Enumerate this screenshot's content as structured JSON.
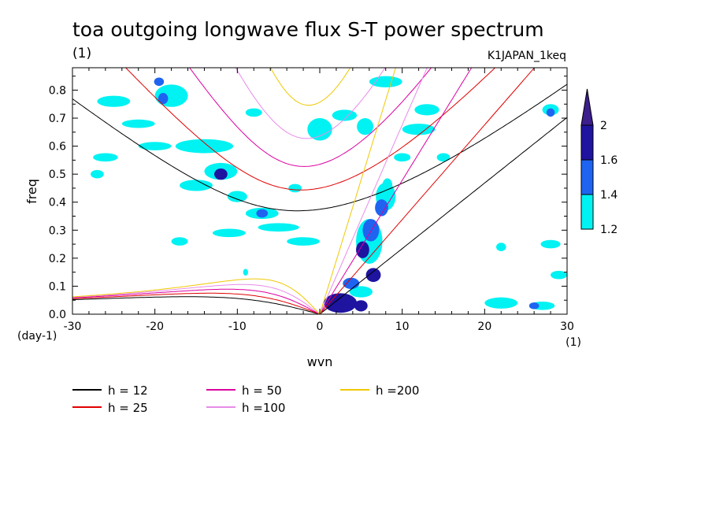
{
  "chart_data": {
    "type": "heatmap",
    "title": "toa outgoing longwave flux S-T power spectrum",
    "subtitle_left": "(1)",
    "subtitle_right": "K1JAPAN_1keq",
    "xlabel": "wvn",
    "ylabel": "freq",
    "x_unit": "(1)",
    "y_unit": "(day-1)",
    "xlim": [
      -30,
      30
    ],
    "ylim": [
      0,
      0.88
    ],
    "x_ticks": [
      -30,
      -20,
      -10,
      0,
      10,
      20,
      30
    ],
    "y_ticks": [
      0.0,
      0.1,
      0.2,
      0.3,
      0.4,
      0.5,
      0.6,
      0.7,
      0.8
    ],
    "x_tick_labels": [
      "-30",
      "-20",
      "-10",
      "0",
      "10",
      "20",
      "30"
    ],
    "y_tick_labels": [
      "0.0",
      "0.1",
      "0.2",
      "0.3",
      "0.4",
      "0.5",
      "0.6",
      "0.7",
      "0.8"
    ],
    "colorbar": {
      "levels": [
        1.2,
        1.4,
        1.6,
        2
      ],
      "labels": [
        "1.2",
        "1.4",
        "1.6",
        "2"
      ],
      "colors": [
        "#00f2f2",
        "#1e64f0",
        "#1e14a0",
        "#3c1e8c"
      ]
    },
    "series": [
      {
        "name": "h = 12",
        "h": 12,
        "color": "#000000"
      },
      {
        "name": "h = 25",
        "h": 25,
        "color": "#e10000"
      },
      {
        "name": "h = 50",
        "h": 50,
        "color": "#dc00a0"
      },
      {
        "name": "h =100",
        "h": 100,
        "color": "#e88ce8"
      },
      {
        "name": "h =200",
        "h": 200,
        "color": "#f0c800"
      }
    ],
    "blobs": [
      {
        "x": 2.5,
        "y": 0.04,
        "rx": 2.0,
        "ry": 0.035,
        "level": 3
      },
      {
        "x": 5.0,
        "y": 0.03,
        "rx": 0.8,
        "ry": 0.02,
        "level": 3
      },
      {
        "x": 3.8,
        "y": 0.11,
        "rx": 1.0,
        "ry": 0.02,
        "level": 2
      },
      {
        "x": 6.5,
        "y": 0.14,
        "rx": 0.9,
        "ry": 0.025,
        "level": 3
      },
      {
        "x": 5.2,
        "y": 0.23,
        "rx": 0.8,
        "ry": 0.03,
        "level": 3
      },
      {
        "x": 6.2,
        "y": 0.3,
        "rx": 1.0,
        "ry": 0.04,
        "level": 2
      },
      {
        "x": 7.5,
        "y": 0.38,
        "rx": 0.8,
        "ry": 0.03,
        "level": 2
      },
      {
        "x": 8.2,
        "y": 0.46,
        "rx": 0.6,
        "ry": 0.025,
        "level": 1
      },
      {
        "x": -12.0,
        "y": 0.5,
        "rx": 0.8,
        "ry": 0.02,
        "level": 3
      },
      {
        "x": -19.5,
        "y": 0.83,
        "rx": 0.6,
        "ry": 0.015,
        "level": 2
      },
      {
        "x": -19.0,
        "y": 0.77,
        "rx": 0.6,
        "ry": 0.02,
        "level": 2
      },
      {
        "x": -7.0,
        "y": 0.36,
        "rx": 0.7,
        "ry": 0.015,
        "level": 2
      },
      {
        "x": 28.0,
        "y": 0.72,
        "rx": 0.5,
        "ry": 0.015,
        "level": 2
      },
      {
        "x": 26.0,
        "y": 0.03,
        "rx": 0.6,
        "ry": 0.012,
        "level": 2
      },
      {
        "x": 5.0,
        "y": 0.08,
        "rx": 1.4,
        "ry": 0.02,
        "level": 1
      },
      {
        "x": 6.0,
        "y": 0.26,
        "rx": 1.6,
        "ry": 0.08,
        "level": 1
      },
      {
        "x": 8.0,
        "y": 0.42,
        "rx": 1.2,
        "ry": 0.05,
        "level": 1
      },
      {
        "x": -18.0,
        "y": 0.78,
        "rx": 2.0,
        "ry": 0.04,
        "level": 1
      },
      {
        "x": -25.0,
        "y": 0.76,
        "rx": 2.0,
        "ry": 0.02,
        "level": 1
      },
      {
        "x": -14.0,
        "y": 0.6,
        "rx": 3.5,
        "ry": 0.025,
        "level": 1
      },
      {
        "x": -20.0,
        "y": 0.6,
        "rx": 2.0,
        "ry": 0.015,
        "level": 1
      },
      {
        "x": -22.0,
        "y": 0.68,
        "rx": 2.0,
        "ry": 0.015,
        "level": 1
      },
      {
        "x": -12.0,
        "y": 0.51,
        "rx": 2.0,
        "ry": 0.03,
        "level": 1
      },
      {
        "x": -15.0,
        "y": 0.46,
        "rx": 2.0,
        "ry": 0.02,
        "level": 1
      },
      {
        "x": -10.0,
        "y": 0.42,
        "rx": 1.2,
        "ry": 0.02,
        "level": 1
      },
      {
        "x": -7.0,
        "y": 0.36,
        "rx": 2.0,
        "ry": 0.02,
        "level": 1
      },
      {
        "x": -5.0,
        "y": 0.31,
        "rx": 2.5,
        "ry": 0.015,
        "level": 1
      },
      {
        "x": -11.0,
        "y": 0.29,
        "rx": 2.0,
        "ry": 0.015,
        "level": 1
      },
      {
        "x": -2.0,
        "y": 0.26,
        "rx": 2.0,
        "ry": 0.015,
        "level": 1
      },
      {
        "x": -17.0,
        "y": 0.26,
        "rx": 1.0,
        "ry": 0.015,
        "level": 1
      },
      {
        "x": 0.0,
        "y": 0.66,
        "rx": 1.5,
        "ry": 0.04,
        "level": 1
      },
      {
        "x": 3.0,
        "y": 0.71,
        "rx": 1.5,
        "ry": 0.02,
        "level": 1
      },
      {
        "x": 5.5,
        "y": 0.67,
        "rx": 1.0,
        "ry": 0.03,
        "level": 1
      },
      {
        "x": 12.0,
        "y": 0.66,
        "rx": 2.0,
        "ry": 0.02,
        "level": 1
      },
      {
        "x": 13.0,
        "y": 0.73,
        "rx": 1.5,
        "ry": 0.02,
        "level": 1
      },
      {
        "x": 8.0,
        "y": 0.83,
        "rx": 2.0,
        "ry": 0.02,
        "level": 1
      },
      {
        "x": 10.0,
        "y": 0.56,
        "rx": 1.0,
        "ry": 0.015,
        "level": 1
      },
      {
        "x": -26.0,
        "y": 0.56,
        "rx": 1.5,
        "ry": 0.015,
        "level": 1
      },
      {
        "x": -8.0,
        "y": 0.72,
        "rx": 1.0,
        "ry": 0.015,
        "level": 1
      },
      {
        "x": 28.0,
        "y": 0.73,
        "rx": 1.0,
        "ry": 0.02,
        "level": 1
      },
      {
        "x": 22.0,
        "y": 0.04,
        "rx": 2.0,
        "ry": 0.02,
        "level": 1
      },
      {
        "x": 27.0,
        "y": 0.03,
        "rx": 1.5,
        "ry": 0.015,
        "level": 1
      },
      {
        "x": 28.0,
        "y": 0.25,
        "rx": 1.2,
        "ry": 0.015,
        "level": 1
      },
      {
        "x": 29.0,
        "y": 0.14,
        "rx": 1.0,
        "ry": 0.015,
        "level": 1
      },
      {
        "x": 22.0,
        "y": 0.24,
        "rx": 0.6,
        "ry": 0.015,
        "level": 1
      },
      {
        "x": 15.0,
        "y": 0.56,
        "rx": 0.8,
        "ry": 0.015,
        "level": 1
      },
      {
        "x": -9.0,
        "y": 0.15,
        "rx": 0.3,
        "ry": 0.012,
        "level": 1
      },
      {
        "x": -27.0,
        "y": 0.5,
        "rx": 0.8,
        "ry": 0.015,
        "level": 1
      },
      {
        "x": -3.0,
        "y": 0.45,
        "rx": 0.8,
        "ry": 0.015,
        "level": 1
      }
    ]
  }
}
